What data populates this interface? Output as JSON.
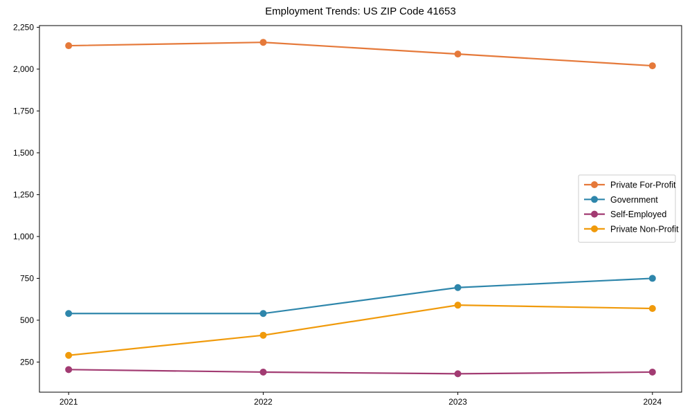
{
  "chart_data": {
    "type": "line",
    "title": "Employment Trends: US ZIP Code 41653",
    "xlabel": "",
    "ylabel": "",
    "x": [
      2021,
      2022,
      2023,
      2024
    ],
    "x_tick_labels": [
      "2021",
      "2022",
      "2023",
      "2024"
    ],
    "y_ticks": [
      250,
      500,
      750,
      1000,
      1250,
      1500,
      1750,
      2000,
      2250
    ],
    "y_tick_labels": [
      "250",
      "500",
      "750",
      "1,000",
      "1,250",
      "1,500",
      "1,750",
      "2,000",
      "2,250"
    ],
    "ylim": [
      70,
      2260
    ],
    "xlim": [
      2020.85,
      2024.15
    ],
    "grid": false,
    "legend_position": "center right",
    "series": [
      {
        "name": "Private For-Profit",
        "color": "#E5793A",
        "values": [
          2140,
          2160,
          2090,
          2020
        ]
      },
      {
        "name": "Government",
        "color": "#2E86AB",
        "values": [
          540,
          540,
          695,
          750
        ]
      },
      {
        "name": "Self-Employed",
        "color": "#A23B72",
        "values": [
          205,
          190,
          180,
          190
        ]
      },
      {
        "name": "Private Non-Profit",
        "color": "#F09A0B",
        "values": [
          290,
          410,
          590,
          570
        ]
      }
    ],
    "style": {
      "spine_color": "#000000",
      "tick_color": "#000000",
      "legend_border_color": "#cccccc",
      "legend_bg_color": "#ffffff",
      "line_width": 2.2,
      "marker_radius": 5
    }
  }
}
